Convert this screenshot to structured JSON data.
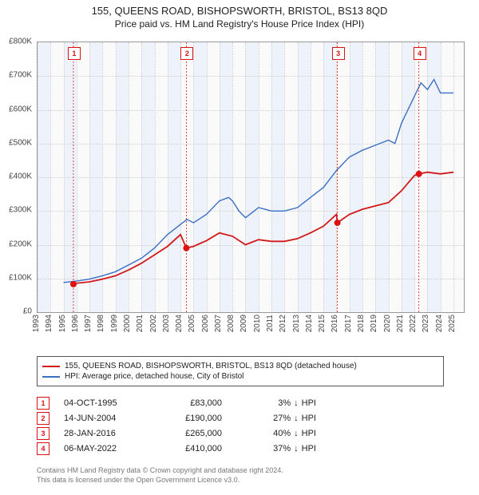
{
  "title": "155, QUEENS ROAD, BISHOPSWORTH, BRISTOL, BS13 8QD",
  "subtitle": "Price paid vs. HM Land Registry's House Price Index (HPI)",
  "chart": {
    "type": "line",
    "background_color": "#fafafa",
    "grid_color": "#cfcfcf",
    "band_color": "#eef3fb",
    "xlim": [
      1993,
      2025.8
    ],
    "ylim": [
      0,
      800000
    ],
    "ytick_step": 100000,
    "yticks": [
      "£0",
      "£100K",
      "£200K",
      "£300K",
      "£400K",
      "£500K",
      "£600K",
      "£700K",
      "£800K"
    ],
    "xticks": [
      1993,
      1994,
      1995,
      1996,
      1997,
      1998,
      1999,
      2000,
      2001,
      2002,
      2003,
      2004,
      2005,
      2006,
      2007,
      2008,
      2009,
      2010,
      2011,
      2012,
      2013,
      2014,
      2015,
      2016,
      2017,
      2018,
      2019,
      2020,
      2021,
      2022,
      2023,
      2024,
      2025
    ],
    "label_fontsize": 10,
    "series": [
      {
        "id": "hpi",
        "label": "HPI: Average price, detached house, City of Bristol",
        "color": "#3b6fc4",
        "width": 1.4,
        "points": [
          [
            1995.0,
            88000
          ],
          [
            1996,
            92000
          ],
          [
            1997,
            98000
          ],
          [
            1998,
            108000
          ],
          [
            1999,
            120000
          ],
          [
            2000,
            140000
          ],
          [
            2001,
            160000
          ],
          [
            2002,
            190000
          ],
          [
            2003,
            230000
          ],
          [
            2004,
            260000
          ],
          [
            2004.5,
            275000
          ],
          [
            2005,
            265000
          ],
          [
            2006,
            290000
          ],
          [
            2007,
            330000
          ],
          [
            2007.7,
            340000
          ],
          [
            2008,
            330000
          ],
          [
            2008.5,
            300000
          ],
          [
            2009,
            280000
          ],
          [
            2009.5,
            295000
          ],
          [
            2010,
            310000
          ],
          [
            2010.5,
            305000
          ],
          [
            2011,
            300000
          ],
          [
            2012,
            300000
          ],
          [
            2013,
            310000
          ],
          [
            2014,
            340000
          ],
          [
            2015,
            370000
          ],
          [
            2016,
            420000
          ],
          [
            2017,
            460000
          ],
          [
            2018,
            480000
          ],
          [
            2019,
            495000
          ],
          [
            2020,
            510000
          ],
          [
            2020.5,
            500000
          ],
          [
            2021,
            560000
          ],
          [
            2022,
            640000
          ],
          [
            2022.5,
            680000
          ],
          [
            2023,
            660000
          ],
          [
            2023.5,
            690000
          ],
          [
            2024,
            650000
          ],
          [
            2025,
            650000
          ]
        ]
      },
      {
        "id": "paid",
        "label": "155, QUEENS ROAD, BISHOPSWORTH, BRISTOL, BS13 8QD (detached house)",
        "color": "#d11919",
        "width": 1.8,
        "points": [
          [
            1995.76,
            83000
          ],
          [
            1996,
            86000
          ],
          [
            1997,
            90000
          ],
          [
            1998,
            98000
          ],
          [
            1999,
            108000
          ],
          [
            2000,
            125000
          ],
          [
            2001,
            145000
          ],
          [
            2002,
            170000
          ],
          [
            2003,
            195000
          ],
          [
            2004,
            230000
          ],
          [
            2004.45,
            190000
          ],
          [
            2005,
            195000
          ],
          [
            2006,
            212000
          ],
          [
            2007,
            235000
          ],
          [
            2008,
            225000
          ],
          [
            2009,
            200000
          ],
          [
            2010,
            215000
          ],
          [
            2011,
            210000
          ],
          [
            2012,
            210000
          ],
          [
            2013,
            218000
          ],
          [
            2014,
            235000
          ],
          [
            2015,
            255000
          ],
          [
            2016,
            290000
          ],
          [
            2016.07,
            265000
          ],
          [
            2017,
            290000
          ],
          [
            2018,
            305000
          ],
          [
            2019,
            315000
          ],
          [
            2020,
            325000
          ],
          [
            2021,
            360000
          ],
          [
            2022,
            405000
          ],
          [
            2022.34,
            410000
          ],
          [
            2023,
            415000
          ],
          [
            2024,
            410000
          ],
          [
            2025,
            415000
          ]
        ]
      }
    ],
    "transactions": [
      {
        "n": "1",
        "year": 1995.76,
        "value": 83000,
        "date": "04-OCT-1995",
        "price": "£83,000",
        "pct": "3%"
      },
      {
        "n": "2",
        "year": 2004.45,
        "value": 190000,
        "date": "14-JUN-2004",
        "price": "£190,000",
        "pct": "27%"
      },
      {
        "n": "3",
        "year": 2016.07,
        "value": 265000,
        "date": "28-JAN-2016",
        "price": "£265,000",
        "pct": "40%"
      },
      {
        "n": "4",
        "year": 2022.34,
        "value": 410000,
        "date": "06-MAY-2022",
        "price": "£410,000",
        "pct": "37%"
      }
    ]
  },
  "legend_hpi_label": "HPI: Average price, detached house, City of Bristol",
  "tx_suffix": "↓ HPI",
  "footer1": "Contains HM Land Registry data © Crown copyright and database right 2024.",
  "footer2": "This data is licensed under the Open Government Licence v3.0."
}
